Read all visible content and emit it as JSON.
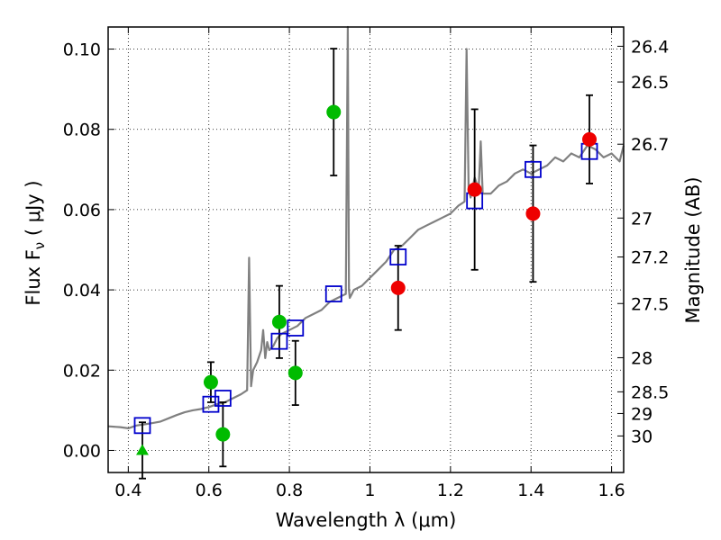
{
  "chart_data": {
    "type": "scatter",
    "xlabel": "Wavelength  λ (μm)",
    "ylabel": "Flux  F",
    "ylabel_sub": "ν",
    "ylabel_unit": " ( μJy )",
    "y2label": "Magnitude (AB)",
    "xlim": [
      0.35,
      1.63
    ],
    "ylim": [
      -0.0055,
      0.1055
    ],
    "xticks": [
      0.4,
      0.6,
      0.8,
      1.0,
      1.2,
      1.4,
      1.6
    ],
    "xtick_labels": [
      "0.4",
      "0.6",
      "0.8",
      "1",
      "1.2",
      "1.4",
      "1.6"
    ],
    "yticks": [
      0.0,
      0.02,
      0.04,
      0.06,
      0.08,
      0.1
    ],
    "ytick_labels": [
      "0.00",
      "0.02",
      "0.04",
      "0.06",
      "0.08",
      "0.10"
    ],
    "mag_ticks": [
      {
        "label": "26.4",
        "flux": 0.1007
      },
      {
        "label": "26.5",
        "flux": 0.0918
      },
      {
        "label": "26.7",
        "flux": 0.0763
      },
      {
        "label": "27",
        "flux": 0.0579
      },
      {
        "label": "27.2",
        "flux": 0.0482
      },
      {
        "label": "27.5",
        "flux": 0.0366
      },
      {
        "label": "28",
        "flux": 0.0231
      },
      {
        "label": "28.5",
        "flux": 0.0146
      },
      {
        "label": "29",
        "flux": 0.0092
      },
      {
        "label": "30",
        "flux": 0.0036
      }
    ],
    "grid": true,
    "colors": {
      "spectrum": "#808080",
      "model": "#0000cc",
      "optical": "#00bb00",
      "nir": "#ee0000",
      "errorbar": "#000000"
    },
    "spectrum": {
      "x": [
        0.35,
        0.38,
        0.4,
        0.42,
        0.44,
        0.46,
        0.48,
        0.5,
        0.52,
        0.54,
        0.56,
        0.58,
        0.6,
        0.62,
        0.64,
        0.66,
        0.68,
        0.695,
        0.7,
        0.705,
        0.71,
        0.72,
        0.73,
        0.735,
        0.74,
        0.745,
        0.75,
        0.76,
        0.77,
        0.78,
        0.8,
        0.82,
        0.84,
        0.86,
        0.88,
        0.9,
        0.92,
        0.94,
        0.945,
        0.948,
        0.95,
        0.955,
        0.96,
        0.98,
        1.0,
        1.02,
        1.04,
        1.06,
        1.08,
        1.1,
        1.12,
        1.14,
        1.16,
        1.18,
        1.2,
        1.22,
        1.235,
        1.24,
        1.245,
        1.25,
        1.26,
        1.27,
        1.275,
        1.28,
        1.3,
        1.32,
        1.34,
        1.36,
        1.38,
        1.4,
        1.42,
        1.44,
        1.46,
        1.48,
        1.5,
        1.52,
        1.54,
        1.56,
        1.58,
        1.6,
        1.62,
        1.63
      ],
      "y": [
        0.006,
        0.0058,
        0.0055,
        0.0062,
        0.0065,
        0.0068,
        0.0072,
        0.008,
        0.0088,
        0.0095,
        0.01,
        0.0103,
        0.0108,
        0.0115,
        0.012,
        0.013,
        0.014,
        0.015,
        0.048,
        0.016,
        0.02,
        0.022,
        0.025,
        0.03,
        0.023,
        0.027,
        0.025,
        0.026,
        0.028,
        0.029,
        0.03,
        0.031,
        0.033,
        0.034,
        0.035,
        0.037,
        0.038,
        0.039,
        0.106,
        0.04,
        0.038,
        0.039,
        0.04,
        0.041,
        0.043,
        0.045,
        0.047,
        0.05,
        0.051,
        0.053,
        0.055,
        0.056,
        0.057,
        0.058,
        0.059,
        0.061,
        0.062,
        0.1,
        0.065,
        0.063,
        0.068,
        0.065,
        0.077,
        0.064,
        0.064,
        0.066,
        0.067,
        0.069,
        0.07,
        0.069,
        0.07,
        0.071,
        0.073,
        0.072,
        0.074,
        0.073,
        0.076,
        0.075,
        0.073,
        0.074,
        0.072,
        0.076
      ]
    },
    "model_points": {
      "x": [
        0.435,
        0.605,
        0.635,
        0.775,
        0.815,
        0.91,
        1.07,
        1.26,
        1.405,
        1.545
      ],
      "y": [
        0.0062,
        0.0115,
        0.013,
        0.0272,
        0.0305,
        0.039,
        0.0482,
        0.0622,
        0.07,
        0.0745
      ]
    },
    "optical_points": [
      {
        "x": 0.605,
        "y": 0.017,
        "err": 0.005
      },
      {
        "x": 0.635,
        "y": 0.004,
        "err": 0.008
      },
      {
        "x": 0.775,
        "y": 0.032,
        "err": 0.009
      },
      {
        "x": 0.815,
        "y": 0.0193,
        "err": 0.008
      },
      {
        "x": 0.91,
        "y": 0.0843,
        "err": 0.0158
      }
    ],
    "optical_upper_limit": {
      "x": 0.435,
      "y": 0.0,
      "err": 0.007
    },
    "nir_points": [
      {
        "x": 1.07,
        "y": 0.0405,
        "err": 0.0105
      },
      {
        "x": 1.26,
        "y": 0.065,
        "err": 0.02
      },
      {
        "x": 1.405,
        "y": 0.059,
        "err": 0.017
      },
      {
        "x": 1.545,
        "y": 0.0775,
        "err": 0.011
      }
    ]
  }
}
